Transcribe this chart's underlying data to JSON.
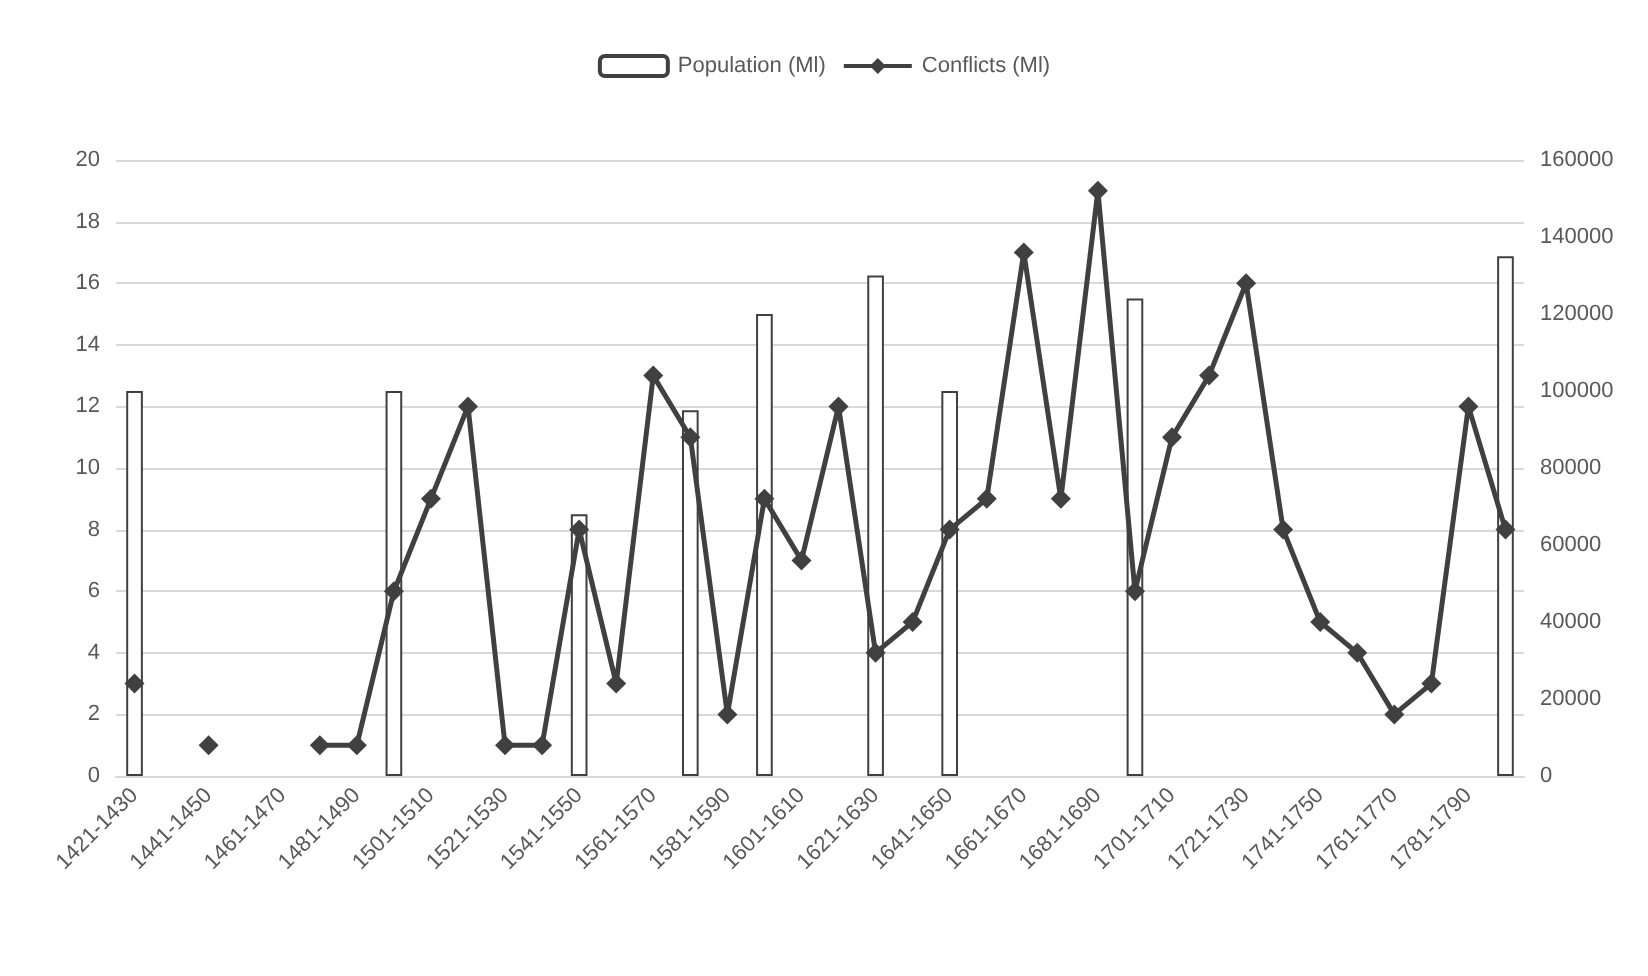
{
  "chart_data": {
    "type": "bar",
    "categories": [
      "1421-1430",
      null,
      "1441-1450",
      null,
      "1461-1470",
      null,
      "1481-1490",
      null,
      "1501-1510",
      null,
      "1521-1530",
      null,
      "1541-1550",
      null,
      "1561-1570",
      null,
      "1581-1590",
      null,
      "1601-1610",
      null,
      "1621-1630",
      null,
      "1641-1650",
      null,
      "1661-1670",
      null,
      "1681-1690",
      null,
      "1701-1710",
      null,
      "1721-1730",
      null,
      "1741-1750",
      null,
      "1761-1770",
      null,
      "1781-1790",
      null
    ],
    "series": [
      {
        "name": "Population (Ml)",
        "axis": "y2",
        "color": "#ffffff",
        "values": [
          100000,
          null,
          null,
          null,
          null,
          null,
          null,
          100000,
          null,
          null,
          null,
          null,
          68000,
          null,
          null,
          95000,
          null,
          120000,
          null,
          null,
          130000,
          null,
          100000,
          null,
          null,
          null,
          null,
          124000,
          null,
          null,
          null,
          null,
          null,
          null,
          null,
          null,
          null,
          135000
        ]
      },
      {
        "name": "Conflicts (Ml)",
        "type": "line",
        "color": "#404040",
        "values": [
          3,
          null,
          1,
          null,
          null,
          1,
          1,
          6,
          9,
          12,
          1,
          1,
          8,
          3,
          13,
          11,
          2,
          9,
          7,
          12,
          4,
          5,
          8,
          9,
          17,
          9,
          19,
          6,
          11,
          13,
          16,
          8,
          5,
          4,
          2,
          3,
          12,
          8
        ]
      }
    ],
    "ylim": [
      0,
      20
    ],
    "yticks": [
      0,
      2,
      4,
      6,
      8,
      10,
      12,
      14,
      16,
      18,
      20
    ],
    "y2lim": [
      0,
      160000
    ],
    "y2ticks": [
      0,
      20000,
      40000,
      60000,
      80000,
      100000,
      120000,
      140000,
      160000
    ],
    "grid": "y",
    "legend": "top",
    "marker": "diamond",
    "line_style": "solid"
  }
}
